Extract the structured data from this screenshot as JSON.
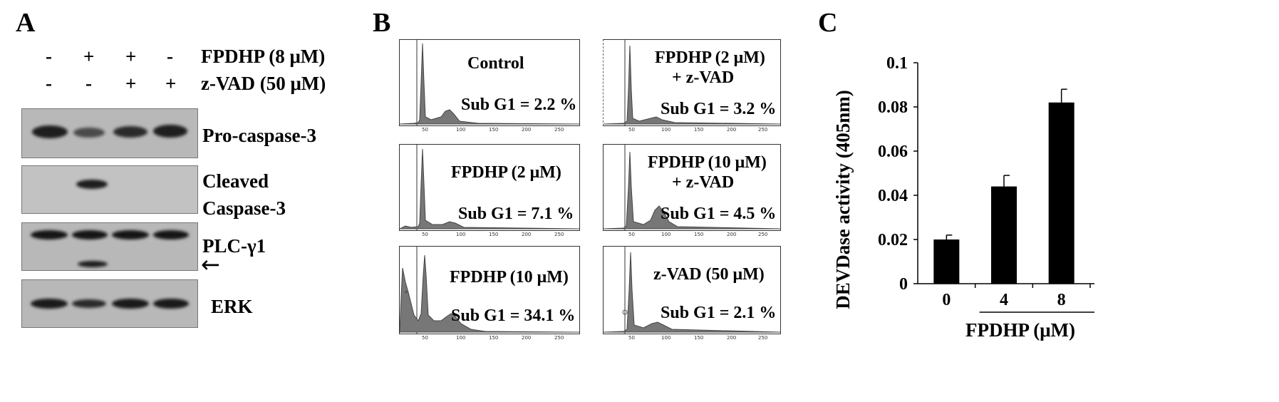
{
  "panel_a": {
    "letter": "A",
    "lanes": [
      {
        "fpdhp": "-",
        "zvad": "-"
      },
      {
        "fpdhp": "+",
        "zvad": "-"
      },
      {
        "fpdhp": "+",
        "zvad": "+"
      },
      {
        "fpdhp": "-",
        "zvad": "+"
      }
    ],
    "fpdhp_label": "FPDHP (8 μM)",
    "zvad_label": "z-VAD (50 μM)",
    "blots": {
      "procasp3": "Pro-caspase-3",
      "cleaved_line1": "Cleaved",
      "cleaved_line2": "Caspase-3",
      "plc": "PLC-γ1",
      "arrow": "←",
      "erk": "ERK"
    }
  },
  "panel_b": {
    "letter": "B",
    "axis_ticks": [
      "50",
      "100",
      "150",
      "200",
      "250"
    ],
    "histograms": [
      {
        "title": "Control",
        "subg1": "Sub G1 = 2.2 %",
        "subg1_value": 2.2
      },
      {
        "title": "FPDHP (2 μM)",
        "title2": "+ z-VAD",
        "subg1": "Sub G1 = 3.2 %",
        "subg1_value": 3.2
      },
      {
        "title": "FPDHP (2 μM)",
        "subg1": "Sub G1 = 7.1 %",
        "subg1_value": 7.1
      },
      {
        "title": "FPDHP (10 μM)",
        "title2": "+ z-VAD",
        "subg1": "Sub G1 = 4.5 %",
        "subg1_value": 4.5
      },
      {
        "title": "FPDHP (10 μM)",
        "subg1": "Sub G1 = 34.1 %",
        "subg1_value": 34.1
      },
      {
        "title": "z-VAD (50 μM)",
        "subg1": "Sub G1 = 2.1 %",
        "subg1_value": 2.1
      }
    ]
  },
  "panel_c": {
    "letter": "C",
    "chart_data": {
      "type": "bar",
      "categories": [
        "0",
        "4",
        "8"
      ],
      "values": [
        0.02,
        0.044,
        0.082
      ],
      "errors": [
        0.002,
        0.005,
        0.006
      ],
      "ylabel": "DEVDase activity (405nm)",
      "xlabel": "FPDHP (μM)",
      "ylim": [
        0,
        0.1
      ],
      "yticks": [
        "0",
        "0.02",
        "0.04",
        "0.06",
        "0.08",
        "0.1"
      ],
      "bar_color": "#000000"
    }
  }
}
